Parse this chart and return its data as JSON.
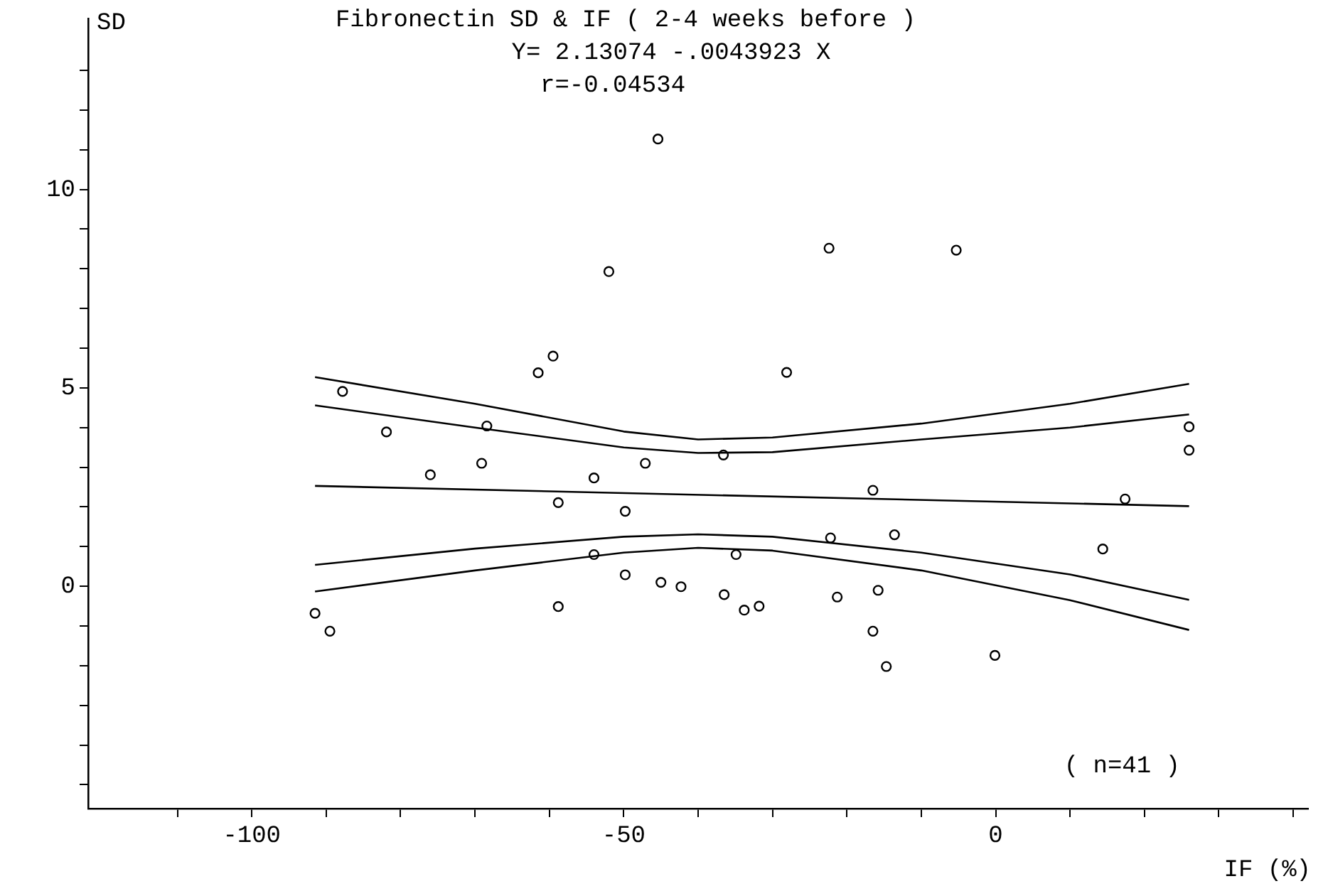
{
  "chart_data": {
    "type": "scatter",
    "title": "Fibronectin SD & IF ( 2-4 weeks before )",
    "xlabel": "IF (%)",
    "ylabel": "SD",
    "annotations": [
      "Y= 2.13074 -.0043923 X",
      "r=-0.04534",
      "( n=41 )"
    ],
    "series": [
      {
        "color": "#000000",
        "marker": "circle",
        "x": [
          -45.4,
          -52.0,
          -59.5,
          -61.5,
          -87.8,
          -81.9,
          -68.4,
          -47.1,
          -69.1,
          -76.0,
          -54.0,
          -58.8,
          -49.8,
          -54.0,
          -49.8,
          -58.8,
          -91.5,
          -89.5,
          -22.4,
          -5.3,
          -28.1,
          -36.6,
          -16.5,
          -22.2,
          -13.6,
          -34.9,
          -45.0,
          -42.3,
          -36.5,
          -33.8,
          -31.8,
          -21.3,
          -15.8,
          -16.5,
          -14.7,
          26.0,
          26.0,
          17.4,
          14.4,
          -0.1
        ],
        "values": [
          11.27,
          7.93,
          5.8,
          5.38,
          4.91,
          3.89,
          4.04,
          3.1,
          3.1,
          2.81,
          2.73,
          2.11,
          1.89,
          0.8,
          0.29,
          -0.51,
          -0.68,
          -1.13,
          8.52,
          8.47,
          5.39,
          3.31,
          2.42,
          1.22,
          1.3,
          0.8,
          0.1,
          -0.01,
          -0.21,
          -0.6,
          -0.5,
          -0.27,
          -0.1,
          -1.13,
          -2.02,
          4.02,
          3.43,
          2.2,
          0.94,
          -1.74
        ]
      },
      {
        "type": "line",
        "color": "#000000",
        "x": [
          -91.5,
          26
        ],
        "values": [
          2.53,
          2.02
        ]
      },
      {
        "type": "line",
        "color": "#000000",
        "x": [
          -91.5,
          -70,
          -50,
          -40,
          -30,
          -10,
          10,
          26
        ],
        "values": [
          5.27,
          4.6,
          3.9,
          3.7,
          3.75,
          4.1,
          4.6,
          5.1
        ]
      },
      {
        "type": "line",
        "color": "#000000",
        "x": [
          -91.5,
          -70,
          -50,
          -40,
          -30,
          -10,
          10,
          26
        ],
        "values": [
          4.56,
          4.0,
          3.5,
          3.36,
          3.38,
          3.7,
          4.0,
          4.33
        ]
      },
      {
        "type": "line",
        "color": "#000000",
        "x": [
          -91.5,
          -70,
          -50,
          -40,
          -30,
          -10,
          10,
          26
        ],
        "values": [
          0.54,
          0.95,
          1.25,
          1.31,
          1.25,
          0.85,
          0.3,
          -0.34
        ]
      },
      {
        "type": "line",
        "color": "#000000",
        "x": [
          -91.5,
          -70,
          -50,
          -40,
          -30,
          -10,
          10,
          26
        ],
        "values": [
          -0.13,
          0.4,
          0.85,
          0.97,
          0.9,
          0.4,
          -0.35,
          -1.1
        ]
      }
    ],
    "xlim": [
      -122,
      42
    ],
    "xticks": [
      {
        "value": -110,
        "label": null
      },
      -100,
      {
        "value": -90,
        "label": null
      },
      {
        "value": -80,
        "label": null
      },
      {
        "value": -70,
        "label": null
      },
      {
        "value": -60,
        "label": null
      },
      -50,
      {
        "value": -40,
        "label": null
      },
      {
        "value": -30,
        "label": null
      },
      {
        "value": -20,
        "label": null
      },
      {
        "value": -10,
        "label": null
      },
      0,
      {
        "value": 10,
        "label": null
      },
      {
        "value": 20,
        "label": null
      },
      {
        "value": 30,
        "label": null
      },
      {
        "value": 40,
        "label": null
      }
    ],
    "ylim": [
      -5.6,
      14.3
    ],
    "yticks": [
      {
        "value": -5,
        "label": null
      },
      {
        "value": -4,
        "label": null
      },
      {
        "value": -3,
        "label": null
      },
      {
        "value": -2,
        "label": null
      },
      {
        "value": -1,
        "label": null
      },
      0,
      {
        "value": 1,
        "label": null
      },
      {
        "value": 2,
        "label": null
      },
      {
        "value": 3,
        "label": null
      },
      {
        "value": 4,
        "label": null
      },
      5,
      {
        "value": 6,
        "label": null
      },
      {
        "value": 7,
        "label": null
      },
      {
        "value": 8,
        "label": null
      },
      {
        "value": 9,
        "label": null
      },
      10,
      {
        "value": 11,
        "label": null
      },
      {
        "value": 12,
        "label": null
      },
      {
        "value": 13,
        "label": null
      }
    ],
    "grid": false,
    "legend": false,
    "line_style": "solid"
  }
}
